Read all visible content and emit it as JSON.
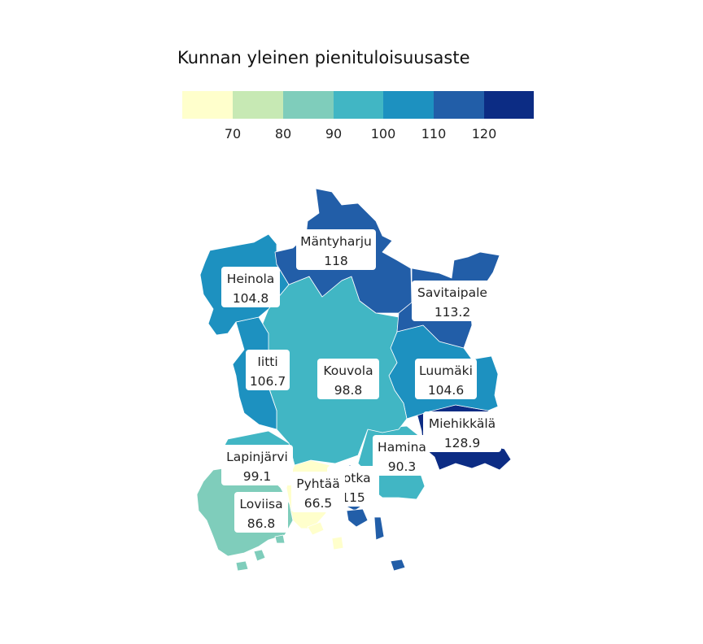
{
  "legend": {
    "title": "Kunnan yleinen pienituloisuusaste",
    "colors": [
      "#ffffcc",
      "#c7e9b4",
      "#7fcdbb",
      "#41b6c4",
      "#1d91c0",
      "#225ea8",
      "#0c2c84"
    ],
    "ticks": [
      "70",
      "80",
      "90",
      "100",
      "110",
      "120"
    ]
  },
  "municipalities": [
    {
      "key": "mantyharju",
      "name": "Mäntyharju",
      "value": "118",
      "color": "#225ea8"
    },
    {
      "key": "heinola",
      "name": "Heinola",
      "value": "104.8",
      "color": "#1d91c0"
    },
    {
      "key": "savitaipale",
      "name": "Savitaipale",
      "value": "113.2",
      "color": "#225ea8"
    },
    {
      "key": "iitti",
      "name": "Iitti",
      "value": "106.7",
      "color": "#1d91c0"
    },
    {
      "key": "kouvola",
      "name": "Kouvola",
      "value": "98.8",
      "color": "#41b6c4"
    },
    {
      "key": "luumaki",
      "name": "Luumäki",
      "value": "104.6",
      "color": "#1d91c0"
    },
    {
      "key": "miehikkala",
      "name": "Miehikkälä",
      "value": "128.9",
      "color": "#0c2c84"
    },
    {
      "key": "hamina",
      "name": "Hamina",
      "value": "90.3",
      "color": "#41b6c4"
    },
    {
      "key": "lapinjarvi",
      "name": "Lapinjärvi",
      "value": "99.1",
      "color": "#41b6c4"
    },
    {
      "key": "kotka",
      "name": "Kotka",
      "value": "115",
      "color": "#225ea8"
    },
    {
      "key": "pyhtaa",
      "name": "Pyhtää",
      "value": "66.5",
      "color": "#ffffcc"
    },
    {
      "key": "loviisa",
      "name": "Loviisa",
      "value": "86.8",
      "color": "#7fcdbb"
    }
  ]
}
